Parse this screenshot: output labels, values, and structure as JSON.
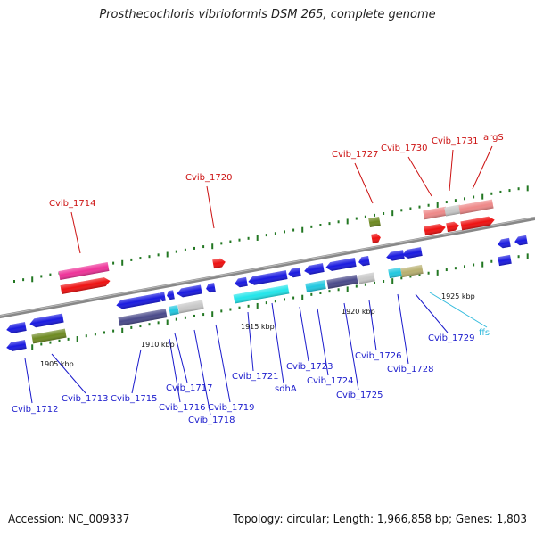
{
  "title": "Prosthecochloris vibrioformis DSM 265, complete genome",
  "footer": {
    "accession": "Accession: NC_009337",
    "topology": "Topology: circular; Length: 1,966,858 bp; Genes: 1,803"
  },
  "colors": {
    "blue": "#1a1ae0",
    "red": "#ee1111",
    "pink": "#ee3399",
    "olive": "#6e8a22",
    "slate": "#4a4a8a",
    "gray": "#c8c8c8",
    "cyan": "#22e5ea",
    "lightcyan": "#22c8e0",
    "tan": "#b8b070",
    "salmon": "#ee8888",
    "green_tick": "#227722",
    "backbone": "#888888"
  },
  "kbp_labels": [
    "1905 kbp",
    "1910 kbp",
    "1915 kbp",
    "1920 kbp",
    "1925 kbp"
  ],
  "gene_labels": {
    "bottom": [
      "Cvib_1712",
      "Cvib_1713",
      "Cvib_1715",
      "Cvib_1716",
      "Cvib_1717",
      "Cvib_1718",
      "Cvib_1719",
      "Cvib_1721",
      "sdhA",
      "Cvib_1723",
      "Cvib_1724",
      "Cvib_1725",
      "Cvib_1726",
      "Cvib_1728",
      "Cvib_1729"
    ],
    "top": [
      "Cvib_1714",
      "Cvib_1720",
      "Cvib_1727",
      "Cvib_1730",
      "Cvib_1731",
      "argS"
    ],
    "rna": [
      "ffs"
    ]
  }
}
